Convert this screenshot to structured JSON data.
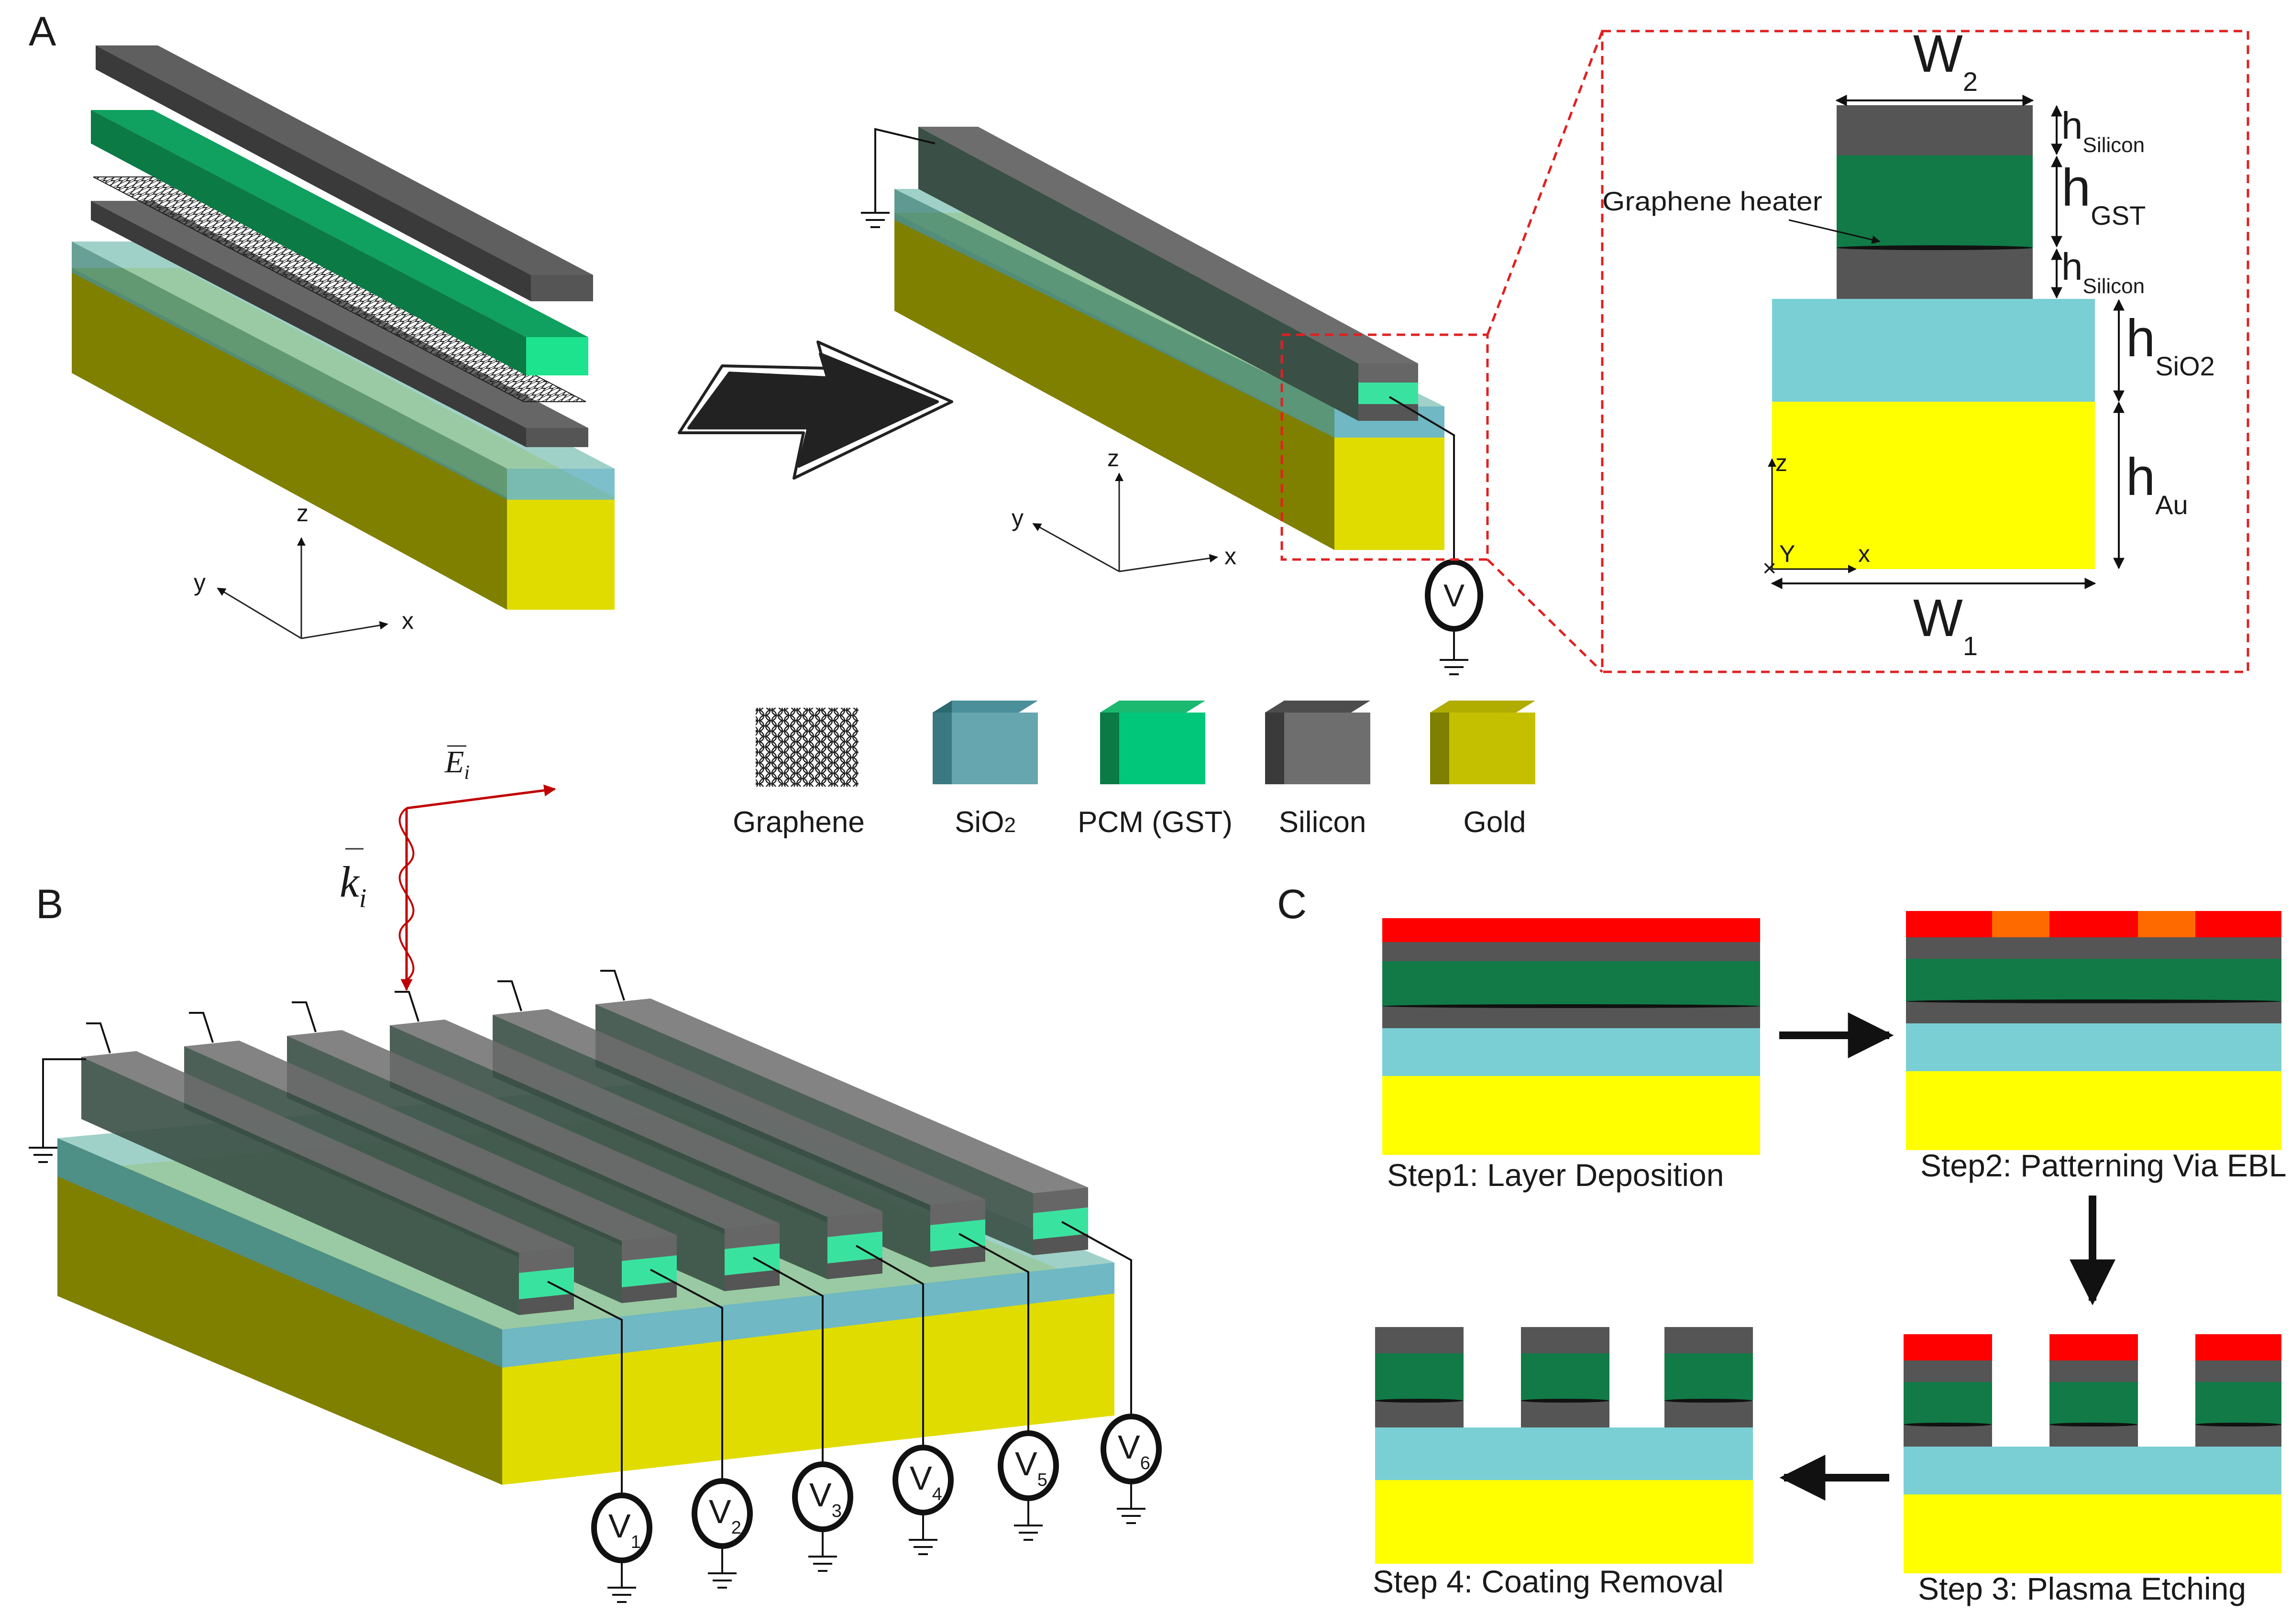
{
  "panels": {
    "a_label": "A",
    "b_label": "B",
    "c_label": "C"
  },
  "axes": {
    "x": "x",
    "y": "y",
    "z": "z",
    "y_cross": "Y"
  },
  "voltage": {
    "v": "V",
    "sub": [
      "1",
      "2",
      "3",
      "4",
      "5",
      "6"
    ]
  },
  "cross_section": {
    "w1": "W",
    "w1_sub": "1",
    "w2": "W",
    "w2_sub": "2",
    "h": "h",
    "h_silicon_top_sub": "Silicon",
    "h_gst_sub": "GST",
    "h_silicon_bottom_sub": "Silicon",
    "h_sio2_sub": "SiO2",
    "h_au_sub": "Au",
    "heater_label": "Graphene heater"
  },
  "legend": {
    "graphene": "Graphene",
    "sio2_base": "SiO",
    "sio2_sub": "2",
    "pcm": "PCM (GST)",
    "silicon": "Silicon",
    "gold": "Gold"
  },
  "wave": {
    "e_field": "E",
    "e_sub": "i",
    "k_vector": "k",
    "k_sub": "i"
  },
  "steps": {
    "step1": "Step1: Layer Deposition",
    "step2": "Step2: Patterning Via EBL",
    "step3": "Step 3: Plasma Etching",
    "step4": "Step 4: Coating Removal"
  },
  "colors": {
    "gold": "#e0dc00",
    "gold_dark": "#7f7f00",
    "gold_flat": "#ffff00",
    "sio2": "#79cfd4",
    "gst": "#117a46",
    "gst_bright": "#39e39f",
    "silicon": "#555555",
    "resist": "#ff0000",
    "resist_exposed": "#ff6a00",
    "wire": "#111111",
    "wave": "#c00000",
    "dashed": "#e02020"
  }
}
